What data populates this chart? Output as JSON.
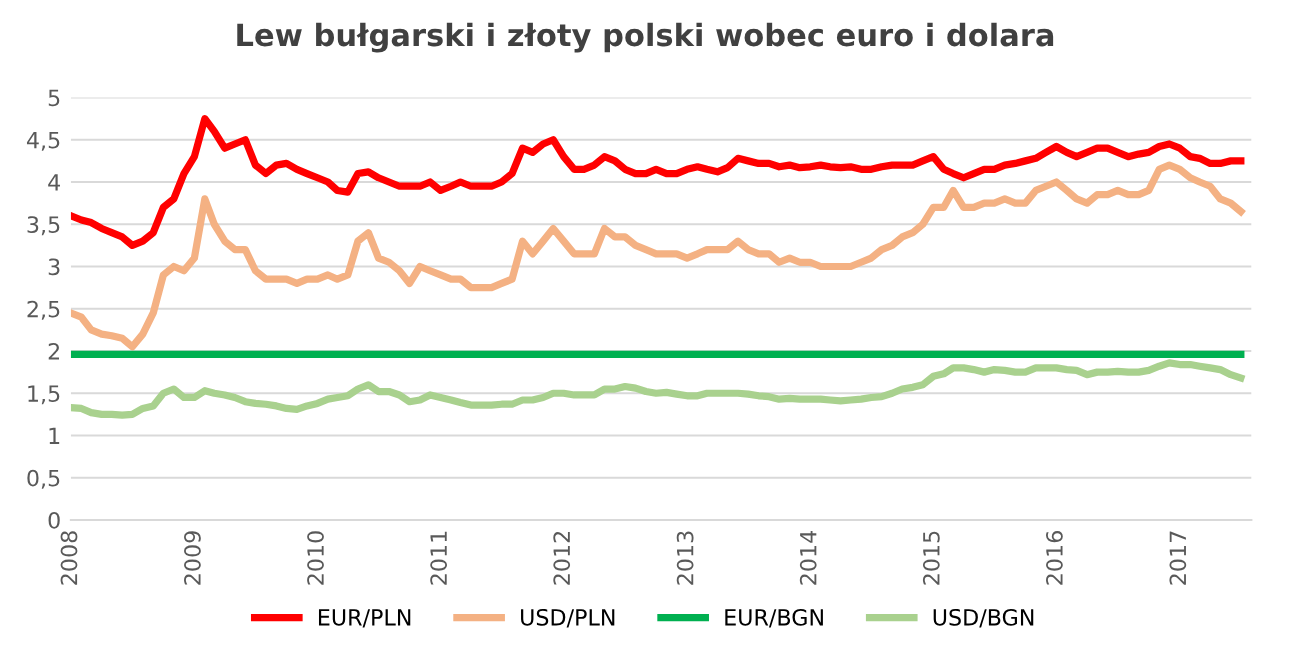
{
  "chart_data": {
    "type": "line",
    "title": "Lew bułgarski i złoty polski wobec euro i dolara",
    "x": [
      "2008-01",
      "2008-02",
      "2008-03",
      "2008-04",
      "2008-05",
      "2008-06",
      "2008-07",
      "2008-08",
      "2008-09",
      "2008-10",
      "2008-11",
      "2008-12",
      "2009-01",
      "2009-02",
      "2009-03",
      "2009-04",
      "2009-05",
      "2009-06",
      "2009-07",
      "2009-08",
      "2009-09",
      "2009-10",
      "2009-11",
      "2009-12",
      "2010-01",
      "2010-02",
      "2010-03",
      "2010-04",
      "2010-05",
      "2010-06",
      "2010-07",
      "2010-08",
      "2010-09",
      "2010-10",
      "2010-11",
      "2010-12",
      "2011-01",
      "2011-02",
      "2011-03",
      "2011-04",
      "2011-05",
      "2011-06",
      "2011-07",
      "2011-08",
      "2011-09",
      "2011-10",
      "2011-11",
      "2011-12",
      "2012-01",
      "2012-02",
      "2012-03",
      "2012-04",
      "2012-05",
      "2012-06",
      "2012-07",
      "2012-08",
      "2012-09",
      "2012-10",
      "2012-11",
      "2012-12",
      "2013-01",
      "2013-02",
      "2013-03",
      "2013-04",
      "2013-05",
      "2013-06",
      "2013-07",
      "2013-08",
      "2013-09",
      "2013-10",
      "2013-11",
      "2013-12",
      "2014-01",
      "2014-02",
      "2014-03",
      "2014-04",
      "2014-05",
      "2014-06",
      "2014-07",
      "2014-08",
      "2014-09",
      "2014-10",
      "2014-11",
      "2014-12",
      "2015-01",
      "2015-02",
      "2015-03",
      "2015-04",
      "2015-05",
      "2015-06",
      "2015-07",
      "2015-08",
      "2015-09",
      "2015-10",
      "2015-11",
      "2015-12",
      "2016-01",
      "2016-02",
      "2016-03",
      "2016-04",
      "2016-05",
      "2016-06",
      "2016-07",
      "2016-08",
      "2016-09",
      "2016-10",
      "2016-11",
      "2016-12",
      "2017-01",
      "2017-02",
      "2017-03",
      "2017-04",
      "2017-05",
      "2017-06",
      "2017-07"
    ],
    "series": [
      {
        "name": "EUR/PLN",
        "color": "#ff0000",
        "values": [
          3.6,
          3.55,
          3.52,
          3.45,
          3.4,
          3.35,
          3.25,
          3.3,
          3.4,
          3.7,
          3.8,
          4.1,
          4.3,
          4.75,
          4.6,
          4.4,
          4.45,
          4.5,
          4.2,
          4.1,
          4.2,
          4.22,
          4.15,
          4.1,
          4.05,
          4.0,
          3.9,
          3.88,
          4.1,
          4.12,
          4.05,
          4.0,
          3.95,
          3.95,
          3.95,
          4.0,
          3.9,
          3.95,
          4.0,
          3.95,
          3.95,
          3.95,
          4.0,
          4.1,
          4.4,
          4.35,
          4.45,
          4.5,
          4.3,
          4.15,
          4.15,
          4.2,
          4.3,
          4.25,
          4.15,
          4.1,
          4.1,
          4.15,
          4.1,
          4.1,
          4.15,
          4.18,
          4.15,
          4.12,
          4.17,
          4.28,
          4.25,
          4.22,
          4.22,
          4.18,
          4.2,
          4.17,
          4.18,
          4.2,
          4.18,
          4.17,
          4.18,
          4.15,
          4.15,
          4.18,
          4.2,
          4.2,
          4.2,
          4.25,
          4.3,
          4.15,
          4.1,
          4.05,
          4.1,
          4.15,
          4.15,
          4.2,
          4.22,
          4.25,
          4.28,
          4.35,
          4.42,
          4.35,
          4.3,
          4.35,
          4.4,
          4.4,
          4.35,
          4.3,
          4.33,
          4.35,
          4.42,
          4.45,
          4.4,
          4.3,
          4.28,
          4.22,
          4.22,
          4.25,
          4.25
        ]
      },
      {
        "name": "USD/PLN",
        "color": "#f4b183",
        "values": [
          2.45,
          2.4,
          2.25,
          2.2,
          2.18,
          2.15,
          2.05,
          2.2,
          2.45,
          2.9,
          3.0,
          2.95,
          3.1,
          3.8,
          3.5,
          3.3,
          3.2,
          3.2,
          2.95,
          2.85,
          2.85,
          2.85,
          2.8,
          2.85,
          2.85,
          2.9,
          2.85,
          2.9,
          3.3,
          3.4,
          3.1,
          3.05,
          2.95,
          2.8,
          3.0,
          2.95,
          2.9,
          2.85,
          2.85,
          2.75,
          2.75,
          2.75,
          2.8,
          2.85,
          3.3,
          3.15,
          3.3,
          3.45,
          3.3,
          3.15,
          3.15,
          3.15,
          3.45,
          3.35,
          3.35,
          3.25,
          3.2,
          3.15,
          3.15,
          3.15,
          3.1,
          3.15,
          3.2,
          3.2,
          3.2,
          3.3,
          3.2,
          3.15,
          3.15,
          3.05,
          3.1,
          3.05,
          3.05,
          3.0,
          3.0,
          3.0,
          3.0,
          3.05,
          3.1,
          3.2,
          3.25,
          3.35,
          3.4,
          3.5,
          3.7,
          3.7,
          3.9,
          3.7,
          3.7,
          3.75,
          3.75,
          3.8,
          3.75,
          3.75,
          3.9,
          3.95,
          4.0,
          3.9,
          3.8,
          3.75,
          3.85,
          3.85,
          3.9,
          3.85,
          3.85,
          3.9,
          4.15,
          4.2,
          4.15,
          4.05,
          4.0,
          3.95,
          3.8,
          3.75,
          3.65
        ]
      },
      {
        "name": "EUR/BGN",
        "color": "#00b050",
        "x": [
          "2008-01",
          "2017-07"
        ],
        "values": [
          1.96,
          1.96
        ]
      },
      {
        "name": "USD/BGN",
        "color": "#a9d18e",
        "values": [
          1.33,
          1.32,
          1.27,
          1.25,
          1.25,
          1.24,
          1.25,
          1.32,
          1.35,
          1.5,
          1.55,
          1.45,
          1.45,
          1.53,
          1.5,
          1.48,
          1.45,
          1.4,
          1.38,
          1.37,
          1.35,
          1.32,
          1.31,
          1.35,
          1.38,
          1.43,
          1.45,
          1.47,
          1.55,
          1.6,
          1.52,
          1.52,
          1.48,
          1.4,
          1.42,
          1.48,
          1.45,
          1.42,
          1.39,
          1.36,
          1.36,
          1.36,
          1.37,
          1.37,
          1.42,
          1.42,
          1.45,
          1.5,
          1.5,
          1.48,
          1.48,
          1.48,
          1.55,
          1.55,
          1.58,
          1.56,
          1.52,
          1.5,
          1.51,
          1.49,
          1.47,
          1.47,
          1.5,
          1.5,
          1.5,
          1.5,
          1.49,
          1.47,
          1.46,
          1.43,
          1.44,
          1.43,
          1.43,
          1.43,
          1.42,
          1.41,
          1.42,
          1.43,
          1.45,
          1.46,
          1.5,
          1.55,
          1.57,
          1.6,
          1.7,
          1.73,
          1.8,
          1.8,
          1.78,
          1.75,
          1.78,
          1.77,
          1.75,
          1.75,
          1.8,
          1.8,
          1.8,
          1.78,
          1.77,
          1.72,
          1.75,
          1.75,
          1.76,
          1.75,
          1.75,
          1.77,
          1.82,
          1.86,
          1.84,
          1.84,
          1.82,
          1.8,
          1.78,
          1.72,
          1.68
        ]
      }
    ],
    "xlim": [
      "2008-01",
      "2017-08"
    ],
    "xticks": [
      {
        "value": "2008-01",
        "label": "2008"
      },
      {
        "value": "2009-01",
        "label": "2009"
      },
      {
        "value": "2010-01",
        "label": "2010"
      },
      {
        "value": "2011-01",
        "label": "2011"
      },
      {
        "value": "2012-01",
        "label": "2012"
      },
      {
        "value": "2013-01",
        "label": "2013"
      },
      {
        "value": "2014-01",
        "label": "2014"
      },
      {
        "value": "2015-01",
        "label": "2015"
      },
      {
        "value": "2016-01",
        "label": "2016"
      },
      {
        "value": "2017-01",
        "label": "2017"
      }
    ],
    "ylim": [
      0,
      5
    ],
    "yticks": [
      0,
      {
        "value": 0.5,
        "label": "0,5"
      },
      1,
      {
        "value": 1.5,
        "label": "1,5"
      },
      2,
      {
        "value": 2.5,
        "label": "2,5"
      },
      3,
      {
        "value": 3.5,
        "label": "3,5"
      },
      4,
      {
        "value": 4.5,
        "label": "4,5"
      },
      5
    ],
    "grid": "y",
    "legend": "bottom",
    "marker": "none",
    "line_style": "solid"
  }
}
